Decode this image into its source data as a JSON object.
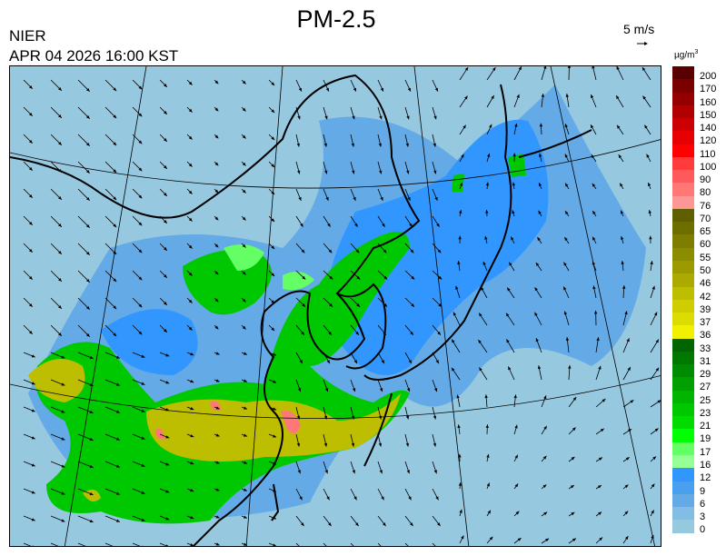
{
  "header": {
    "title": "PM-2.5",
    "agency": "NIER",
    "datetime": "APR 04 2026 16:00 KST",
    "wind_scale_label": "5 m/s",
    "wind_scale_icon": "arrow-right-icon"
  },
  "legend": {
    "unit": "µg/m",
    "unit_sup": "3",
    "items": [
      {
        "label": "200",
        "color": "#5a0000"
      },
      {
        "label": "170",
        "color": "#780000"
      },
      {
        "label": "160",
        "color": "#940000"
      },
      {
        "label": "150",
        "color": "#b00000"
      },
      {
        "label": "140",
        "color": "#cc0000"
      },
      {
        "label": "120",
        "color": "#e60000"
      },
      {
        "label": "110",
        "color": "#ff0000"
      },
      {
        "label": "100",
        "color": "#ff3c3c"
      },
      {
        "label": "90",
        "color": "#ff5a5a"
      },
      {
        "label": "80",
        "color": "#ff7878"
      },
      {
        "label": "76",
        "color": "#ff9696"
      },
      {
        "label": "70",
        "color": "#5f5f00"
      },
      {
        "label": "65",
        "color": "#6e6e00"
      },
      {
        "label": "60",
        "color": "#7d7d00"
      },
      {
        "label": "55",
        "color": "#8c8c00"
      },
      {
        "label": "50",
        "color": "#9b9b00"
      },
      {
        "label": "46",
        "color": "#aaaa00"
      },
      {
        "label": "42",
        "color": "#bebe00"
      },
      {
        "label": "39",
        "color": "#cdcd00"
      },
      {
        "label": "37",
        "color": "#dcdc00"
      },
      {
        "label": "36",
        "color": "#f0f000"
      },
      {
        "label": "33",
        "color": "#006400"
      },
      {
        "label": "31",
        "color": "#007800"
      },
      {
        "label": "29",
        "color": "#008c00"
      },
      {
        "label": "27",
        "color": "#00a000"
      },
      {
        "label": "25",
        "color": "#00b400"
      },
      {
        "label": "23",
        "color": "#00c800"
      },
      {
        "label": "21",
        "color": "#00dc00"
      },
      {
        "label": "19",
        "color": "#00ff00"
      },
      {
        "label": "17",
        "color": "#64ff64"
      },
      {
        "label": "16",
        "color": "#96ff96"
      },
      {
        "label": "12",
        "color": "#3296ff"
      },
      {
        "label": "9",
        "color": "#4b9fef"
      },
      {
        "label": "6",
        "color": "#64aae6"
      },
      {
        "label": "3",
        "color": "#82bde6"
      },
      {
        "label": "0",
        "color": "#96c8e0"
      }
    ]
  }
}
